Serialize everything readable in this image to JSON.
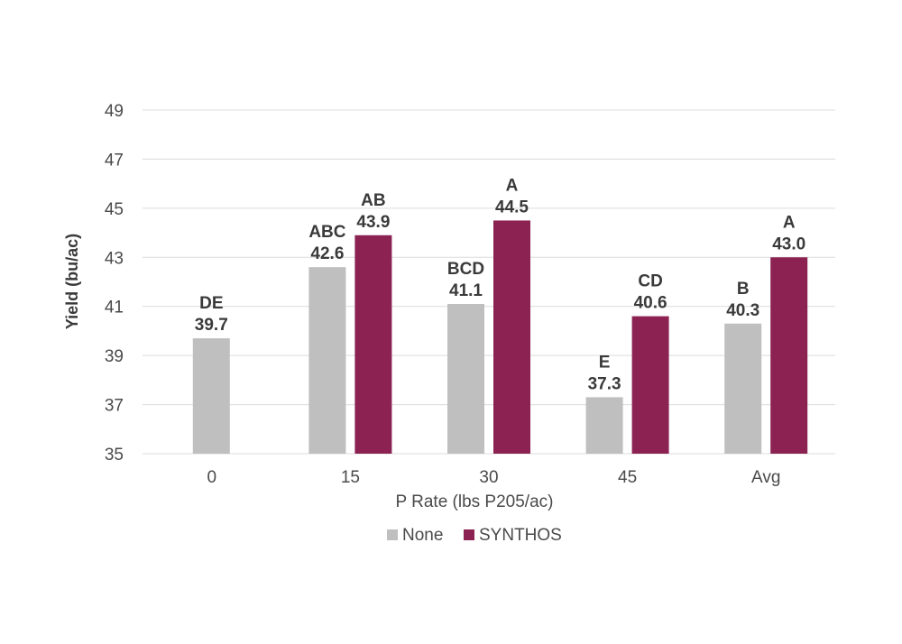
{
  "chart_data": {
    "type": "bar",
    "xlabel": "P Rate (lbs P205/ac)",
    "ylabel": "Yield (bu/ac)",
    "ylim": [
      35,
      49
    ],
    "yticks": [
      35,
      37,
      39,
      41,
      43,
      45,
      47,
      49
    ],
    "grid": true,
    "legend_position": "bottom",
    "categories": [
      "0",
      "15",
      "30",
      "45",
      "Avg"
    ],
    "series": [
      {
        "name": "None",
        "color": "#bfbfbf",
        "values": [
          39.7,
          42.6,
          41.1,
          37.3,
          40.3
        ],
        "value_labels": [
          "39.7",
          "42.6",
          "41.1",
          "37.3",
          "40.3"
        ],
        "letters": [
          "DE",
          "ABC",
          "BCD",
          "E",
          "B"
        ]
      },
      {
        "name": "SYNTHOS",
        "color": "#8b2252",
        "values": [
          null,
          43.9,
          44.5,
          40.6,
          43.0
        ],
        "value_labels": [
          null,
          "43.9",
          "44.5",
          "40.6",
          "43.0"
        ],
        "letters": [
          null,
          "AB",
          "A",
          "CD",
          "A"
        ]
      }
    ]
  }
}
